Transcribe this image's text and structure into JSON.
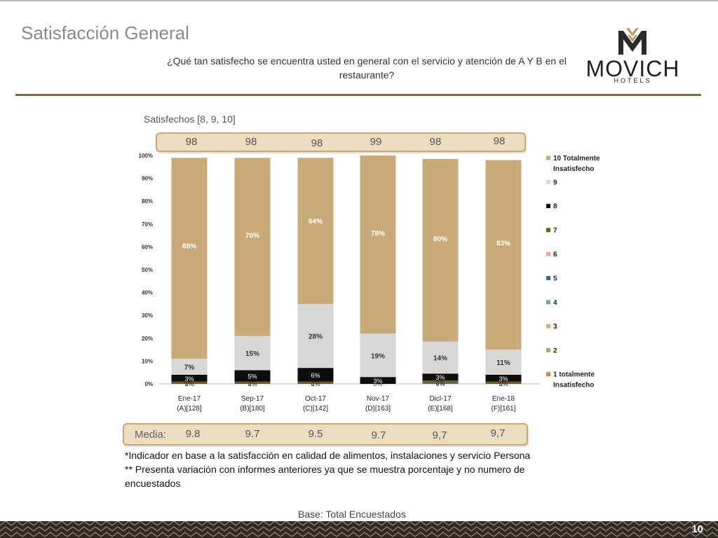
{
  "header": {
    "title": "Satisfacción General",
    "question": "¿Qué tan satisfecho se encuentra usted en general con el servicio y atención de A Y B en el restaurante?"
  },
  "logo": {
    "name": "MOVICH",
    "sub": "HOTELS"
  },
  "satisfied": {
    "label": "Satisfechos [8, 9, 10]",
    "values": [
      "98",
      "98",
      "98",
      "99",
      "98",
      "98"
    ]
  },
  "media": {
    "label": "Media:",
    "values": [
      "9.8",
      "9.7",
      "9.5",
      "9.7",
      "9,7",
      "9,7"
    ]
  },
  "notes": {
    "line1": "*Indicador en base a la satisfacción en calidad de alimentos, instalaciones y servicio Persona",
    "line2": "** Presenta variación con informes anteriores ya que se muestra porcentaje y no numero de encuestados"
  },
  "base": "Base: Total Encuestados",
  "page_number": "10",
  "colors": {
    "gold": "#c8ab78",
    "light_gray": "#d9d6d6",
    "black": "#0d0d0d",
    "brown": "#7a5a18",
    "pink": "#e8a898",
    "blue": "#3a6a9a",
    "teal": "#78a898",
    "gold2": "#d8b068",
    "olive": "#a8b070",
    "orange": "#d08850",
    "band": "#ecdcc0",
    "band_border": "#c9a876",
    "divider": "#7a6a52"
  },
  "chart_data": {
    "type": "bar",
    "stacked": true,
    "categories": [
      [
        "Ene-17",
        "(A)[128]"
      ],
      [
        "Sep-17",
        "(B)[180]"
      ],
      [
        "Oct-17",
        "(C)[142]"
      ],
      [
        "Nov-17",
        "(D)[163]"
      ],
      [
        "Dicl-17",
        "(E)[168]"
      ],
      [
        "Ene-18",
        "(F)[161]"
      ]
    ],
    "y_ticks": [
      "0%",
      "10%",
      "20%",
      "30%",
      "40%",
      "50%",
      "60%",
      "70%",
      "80%",
      "90%",
      "100%"
    ],
    "ylim": [
      0,
      100
    ],
    "legend_position": "right",
    "series": [
      {
        "name": "1 totalmente Insatisfecho",
        "color": "#d08850",
        "values": [
          0,
          0,
          0,
          0,
          0,
          0
        ],
        "labels": [
          "",
          "",
          "",
          "",
          "",
          ""
        ]
      },
      {
        "name": "2",
        "color": "#a8b070",
        "values": [
          0,
          0,
          0,
          0,
          0,
          0
        ],
        "labels": [
          "",
          "",
          "",
          "",
          "",
          ""
        ]
      },
      {
        "name": "3",
        "color": "#d8b068",
        "values": [
          0,
          0,
          0,
          0,
          0,
          0
        ],
        "labels": [
          "",
          "",
          "",
          "",
          "",
          ""
        ]
      },
      {
        "name": "4",
        "color": "#78a898",
        "values": [
          0,
          0,
          0,
          0,
          0,
          0
        ],
        "labels": [
          "0%",
          "0%",
          "0%",
          "",
          "0%",
          "0%"
        ]
      },
      {
        "name": "5",
        "color": "#3a6a9a",
        "values": [
          0,
          0,
          0,
          0,
          0.5,
          0
        ],
        "labels": [
          "",
          "",
          "",
          "",
          "",
          ""
        ]
      },
      {
        "name": "6",
        "color": "#e8a898",
        "values": [
          0,
          0,
          0,
          0,
          0,
          0
        ],
        "labels": [
          "",
          "",
          "",
          "0%",
          "",
          ""
        ]
      },
      {
        "name": "7",
        "color": "#7a5a18",
        "values": [
          1,
          1,
          1,
          0,
          1,
          1
        ],
        "labels": [
          "1%",
          "1%",
          "1%",
          "",
          "1%",
          "1%"
        ]
      },
      {
        "name": "8",
        "color": "#0d0d0d",
        "values": [
          3,
          5,
          6,
          3,
          3,
          3
        ],
        "labels": [
          "3%",
          "5%",
          "6%",
          "3%",
          "3%",
          "3%"
        ]
      },
      {
        "name": "9",
        "color": "#d9d6d6",
        "values": [
          7,
          15,
          28,
          19,
          14,
          11
        ],
        "labels": [
          "7%",
          "15%",
          "28%",
          "19%",
          "14%",
          "11%"
        ]
      },
      {
        "name": "10 Totalmente Insatisfecho",
        "color": "#c8ab78",
        "values": [
          88,
          78,
          64,
          78,
          80,
          83
        ],
        "labels": [
          "88%",
          "78%",
          "64%",
          "78%",
          "80%",
          "83%"
        ]
      }
    ],
    "legend": [
      [
        "10 Totalmente",
        "Insatisfecho"
      ],
      [
        "9"
      ],
      [
        "8"
      ],
      [
        "7"
      ],
      [
        "6"
      ],
      [
        "5"
      ],
      [
        "4"
      ],
      [
        "3"
      ],
      [
        "2"
      ],
      [
        "1 totalmente",
        "Insatisfecho"
      ]
    ]
  }
}
